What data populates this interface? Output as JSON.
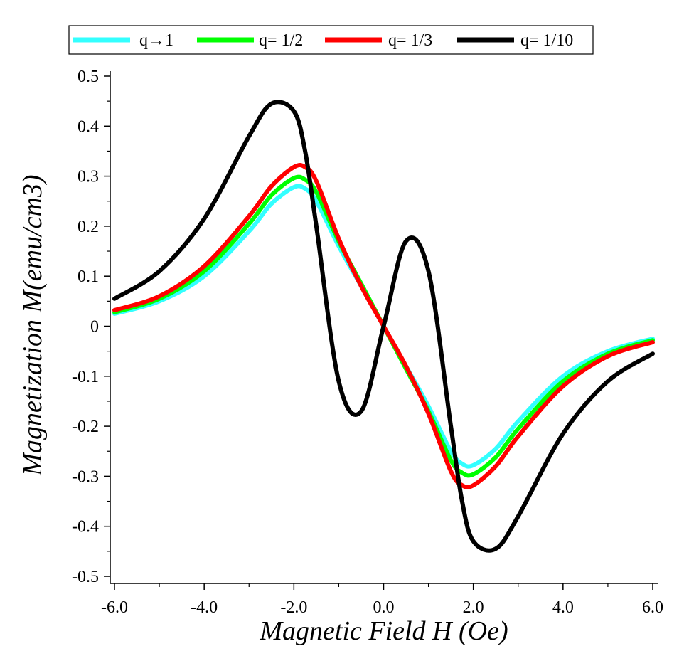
{
  "chart_data": {
    "type": "line",
    "title": "",
    "xlabel": "Magnetic Field H (Oe)",
    "ylabel": "Magnetization M(emu/cm3)",
    "xlim": [
      -6.0,
      6.0
    ],
    "ylim": [
      -0.5,
      0.5
    ],
    "x_ticks": [
      -6.0,
      -4.0,
      -2.0,
      0.0,
      2.0,
      4.0,
      6.0
    ],
    "x_tick_labels": [
      "-6.0",
      "-4.0",
      "-2.0",
      "0.0",
      "2.0",
      "4.0",
      "6.0"
    ],
    "y_ticks": [
      0.5,
      0.4,
      0.3,
      0.2,
      0.1,
      0,
      -0.1,
      -0.2,
      -0.3,
      -0.4,
      -0.5
    ],
    "y_tick_labels": [
      "0.5",
      "0.4",
      "0.3",
      "0.2",
      "0.1",
      "0",
      "-0.1",
      "-0.2",
      "-0.3",
      "-0.4",
      "-0.5"
    ],
    "grid": false,
    "legend_position": "top",
    "x": [
      -6.0,
      -5.0,
      -4.0,
      -3.0,
      -2.5,
      -2.0,
      -1.75,
      -1.5,
      -1.0,
      -0.5,
      0.0,
      0.5,
      1.0,
      1.5,
      1.75,
      2.0,
      2.5,
      3.0,
      4.0,
      5.0,
      6.0
    ],
    "series": [
      {
        "name": "q→1",
        "color": "#33ffff",
        "values": [
          0.025,
          0.05,
          0.1,
          0.19,
          0.245,
          0.278,
          0.275,
          0.25,
          0.16,
          0.08,
          0.0,
          -0.08,
          -0.16,
          -0.25,
          -0.275,
          -0.278,
          -0.245,
          -0.19,
          -0.1,
          -0.05,
          -0.025
        ]
      },
      {
        "name": "q= 1/2",
        "color": "#00ff00",
        "values": [
          0.028,
          0.055,
          0.11,
          0.205,
          0.262,
          0.296,
          0.293,
          0.268,
          0.17,
          0.085,
          0.0,
          -0.085,
          -0.17,
          -0.268,
          -0.293,
          -0.296,
          -0.262,
          -0.205,
          -0.11,
          -0.055,
          -0.028
        ]
      },
      {
        "name": "q= 1/3",
        "color": "#ff0000",
        "values": [
          0.032,
          0.06,
          0.12,
          0.22,
          0.28,
          0.318,
          0.318,
          0.29,
          0.175,
          0.08,
          0.0,
          -0.08,
          -0.175,
          -0.29,
          -0.318,
          -0.318,
          -0.28,
          -0.22,
          -0.12,
          -0.06,
          -0.032
        ]
      },
      {
        "name": "q= 1/10",
        "color": "#000000",
        "values": [
          0.055,
          0.11,
          0.215,
          0.38,
          0.445,
          0.43,
          0.35,
          0.2,
          -0.11,
          -0.17,
          0.0,
          0.17,
          0.11,
          -0.2,
          -0.35,
          -0.43,
          -0.445,
          -0.38,
          -0.215,
          -0.11,
          -0.055
        ]
      }
    ]
  }
}
